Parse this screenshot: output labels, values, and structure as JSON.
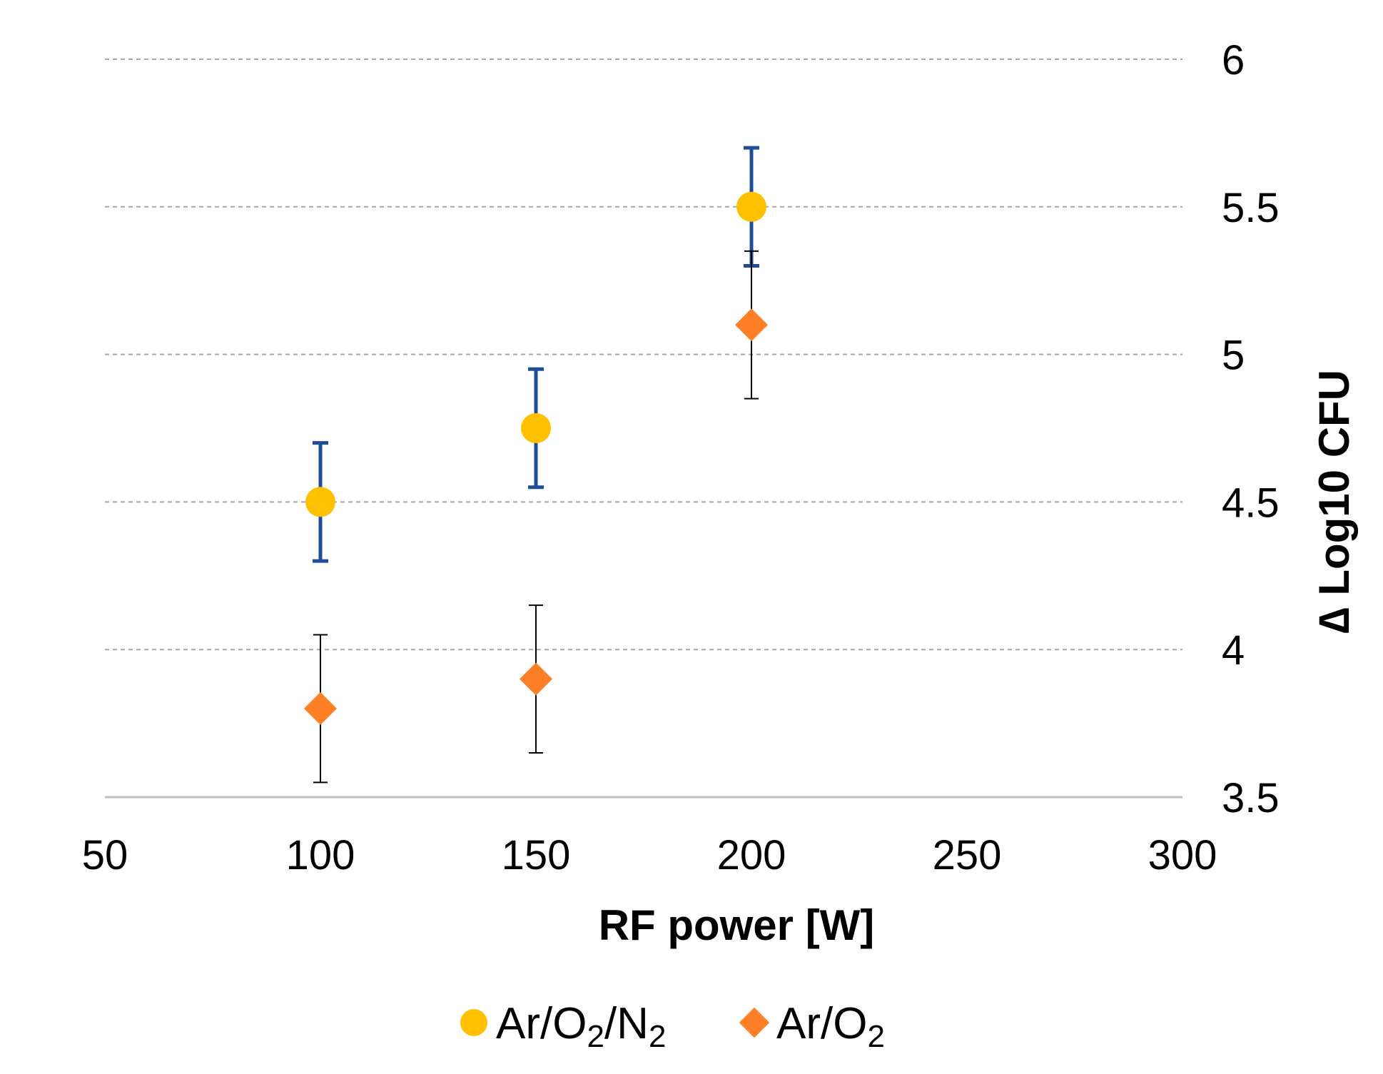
{
  "chart_data": {
    "type": "scatter",
    "title": "",
    "xlabel": "RF power [W]",
    "ylabel": "∆ Log10 CFU",
    "xlim": [
      50,
      300
    ],
    "ylim": [
      3.5,
      6
    ],
    "xticks": [
      "50",
      "100",
      "150",
      "200",
      "250",
      "300"
    ],
    "yticks": [
      "3.5",
      "4",
      "4.5",
      "5",
      "5.5",
      "6"
    ],
    "y_axis_side": "right",
    "grid": "horizontal dashed",
    "legend_position": "bottom-center",
    "series": [
      {
        "name": "Ar/O2/N2",
        "legend": {
          "base": "Ar/O",
          "sub1": "2",
          "mid": "/N",
          "sub2": "2"
        },
        "marker": "circle",
        "color": "#FFC000",
        "errorbar_color": "#1F4E99",
        "x": [
          100,
          150,
          200
        ],
        "y": [
          4.5,
          4.75,
          5.5
        ],
        "yerr": [
          0.2,
          0.2,
          0.2
        ]
      },
      {
        "name": "Ar/O2",
        "legend": {
          "base": "Ar/O",
          "sub1": "2"
        },
        "marker": "diamond",
        "color": "#FF7F27",
        "errorbar_color": "#000000",
        "x": [
          100,
          150,
          200
        ],
        "y": [
          3.8,
          3.9,
          5.1
        ],
        "yerr": [
          0.25,
          0.25,
          0.25
        ]
      }
    ]
  }
}
